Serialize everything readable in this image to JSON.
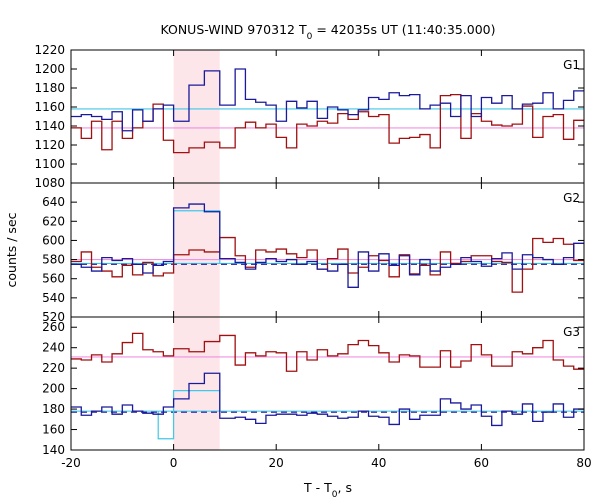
{
  "figure": {
    "title_main": "KONUS-WIND 970312 T",
    "title_sub": "0",
    "title_rest": " = 42035s UT (11:40:35.000)",
    "xlabel_main": "T - T",
    "xlabel_sub": "0",
    "xlabel_rest": ", s",
    "ylabel": "counts / sec"
  },
  "colors": {
    "red": "#a01010",
    "blue": "#1a1a9a",
    "cyan": "#40c8e8",
    "pink": "#f090e0",
    "shade": "#fde6ea"
  },
  "chart_data": {
    "type": "line",
    "shared_x": {
      "xlim": [
        -20,
        80
      ],
      "xticks": [
        -20,
        0,
        20,
        40,
        60,
        80
      ],
      "tick_labels": [
        "-20",
        "0",
        "20",
        "40",
        "60",
        "80"
      ],
      "bin_edges": [
        -20,
        -18,
        -16,
        -14,
        -12,
        -10,
        -8,
        -6,
        -4,
        -2,
        0,
        3,
        6,
        9,
        12,
        14,
        16,
        18,
        20,
        22,
        24,
        26,
        28,
        30,
        32,
        34,
        36,
        38,
        40,
        42,
        44,
        46,
        48,
        50,
        52,
        54,
        56,
        58,
        60,
        62,
        64,
        66,
        68,
        70,
        72,
        74,
        76,
        78,
        80
      ],
      "highlight_interval": [
        0,
        9
      ]
    },
    "panels": [
      {
        "label": "G1",
        "ylim": [
          1080,
          1220
        ],
        "yticks": [
          1080,
          1100,
          1120,
          1140,
          1160,
          1180,
          1200,
          1220
        ],
        "steps_red": [
          1138,
          1127,
          1145,
          1115,
          1145,
          1127,
          1138,
          1145,
          1163,
          1125,
          1112,
          1117,
          1123,
          1117,
          1138,
          1144,
          1138,
          1142,
          1128,
          1117,
          1142,
          1140,
          1145,
          1143,
          1153,
          1147,
          1155,
          1150,
          1152,
          1122,
          1127,
          1128,
          1131,
          1117,
          1172,
          1173,
          1127,
          1153,
          1145,
          1141,
          1140,
          1142,
          1161,
          1128,
          1150,
          1152,
          1126,
          1146
        ],
        "steps_blue": [
          1150,
          1152,
          1150,
          1147,
          1155,
          1135,
          1157,
          1145,
          1158,
          1162,
          1145,
          1183,
          1198,
          1162,
          1200,
          1168,
          1165,
          1162,
          1145,
          1166,
          1159,
          1166,
          1148,
          1160,
          1157,
          1152,
          1157,
          1170,
          1168,
          1175,
          1172,
          1173,
          1158,
          1162,
          1164,
          1150,
          1172,
          1150,
          1170,
          1164,
          1172,
          1158,
          1163,
          1164,
          1175,
          1158,
          1167,
          1177
        ],
        "bg_cyan": 1158,
        "bg_pink": 1138
      },
      {
        "label": "G2",
        "ylim": [
          520,
          660
        ],
        "yticks": [
          520,
          540,
          560,
          580,
          600,
          620,
          640
        ],
        "steps_red": [
          578,
          588,
          572,
          568,
          562,
          574,
          564,
          577,
          563,
          566,
          585,
          590,
          588,
          603,
          584,
          572,
          590,
          588,
          591,
          586,
          582,
          590,
          570,
          581,
          591,
          566,
          572,
          584,
          579,
          562,
          585,
          565,
          574,
          564,
          588,
          576,
          578,
          584,
          584,
          578,
          577,
          546,
          570,
          602,
          598,
          602,
          596,
          579
        ],
        "steps_blue": [
          575,
          572,
          568,
          582,
          579,
          581,
          575,
          566,
          574,
          578,
          634,
          638,
          630,
          581,
          577,
          570,
          577,
          581,
          578,
          580,
          575,
          578,
          570,
          568,
          575,
          551,
          588,
          568,
          586,
          574,
          584,
          564,
          580,
          568,
          572,
          575,
          582,
          578,
          573,
          581,
          587,
          570,
          585,
          582,
          580,
          575,
          582,
          597
        ],
        "bg_cyan": 576,
        "bg_blue_dash": 575,
        "bg_pink": 580,
        "high_cyan": 631
      },
      {
        "label": "G3",
        "ylim": [
          140,
          270
        ],
        "yticks": [
          140,
          160,
          180,
          200,
          220,
          240,
          260
        ],
        "steps_red": [
          229,
          228,
          233,
          226,
          234,
          245,
          254,
          238,
          236,
          232,
          239,
          236,
          246,
          252,
          223,
          235,
          232,
          236,
          235,
          217,
          236,
          228,
          238,
          232,
          234,
          243,
          247,
          242,
          235,
          226,
          233,
          232,
          221,
          221,
          237,
          221,
          227,
          243,
          233,
          222,
          222,
          236,
          234,
          240,
          247,
          228,
          222,
          219
        ],
        "steps_blue": [
          182,
          174,
          178,
          182,
          175,
          184,
          178,
          176,
          175,
          182,
          190,
          205,
          215,
          171,
          172,
          170,
          166,
          174,
          175,
          175,
          174,
          176,
          175,
          173,
          171,
          172,
          178,
          173,
          172,
          165,
          180,
          170,
          174,
          174,
          190,
          186,
          180,
          184,
          173,
          164,
          178,
          175,
          185,
          168,
          177,
          185,
          172,
          180
        ],
        "bg_cyan": 178,
        "bg_blue_dash": 177,
        "bg_pink": 231,
        "low_cyan": 151,
        "high_cyan": 198
      }
    ]
  }
}
